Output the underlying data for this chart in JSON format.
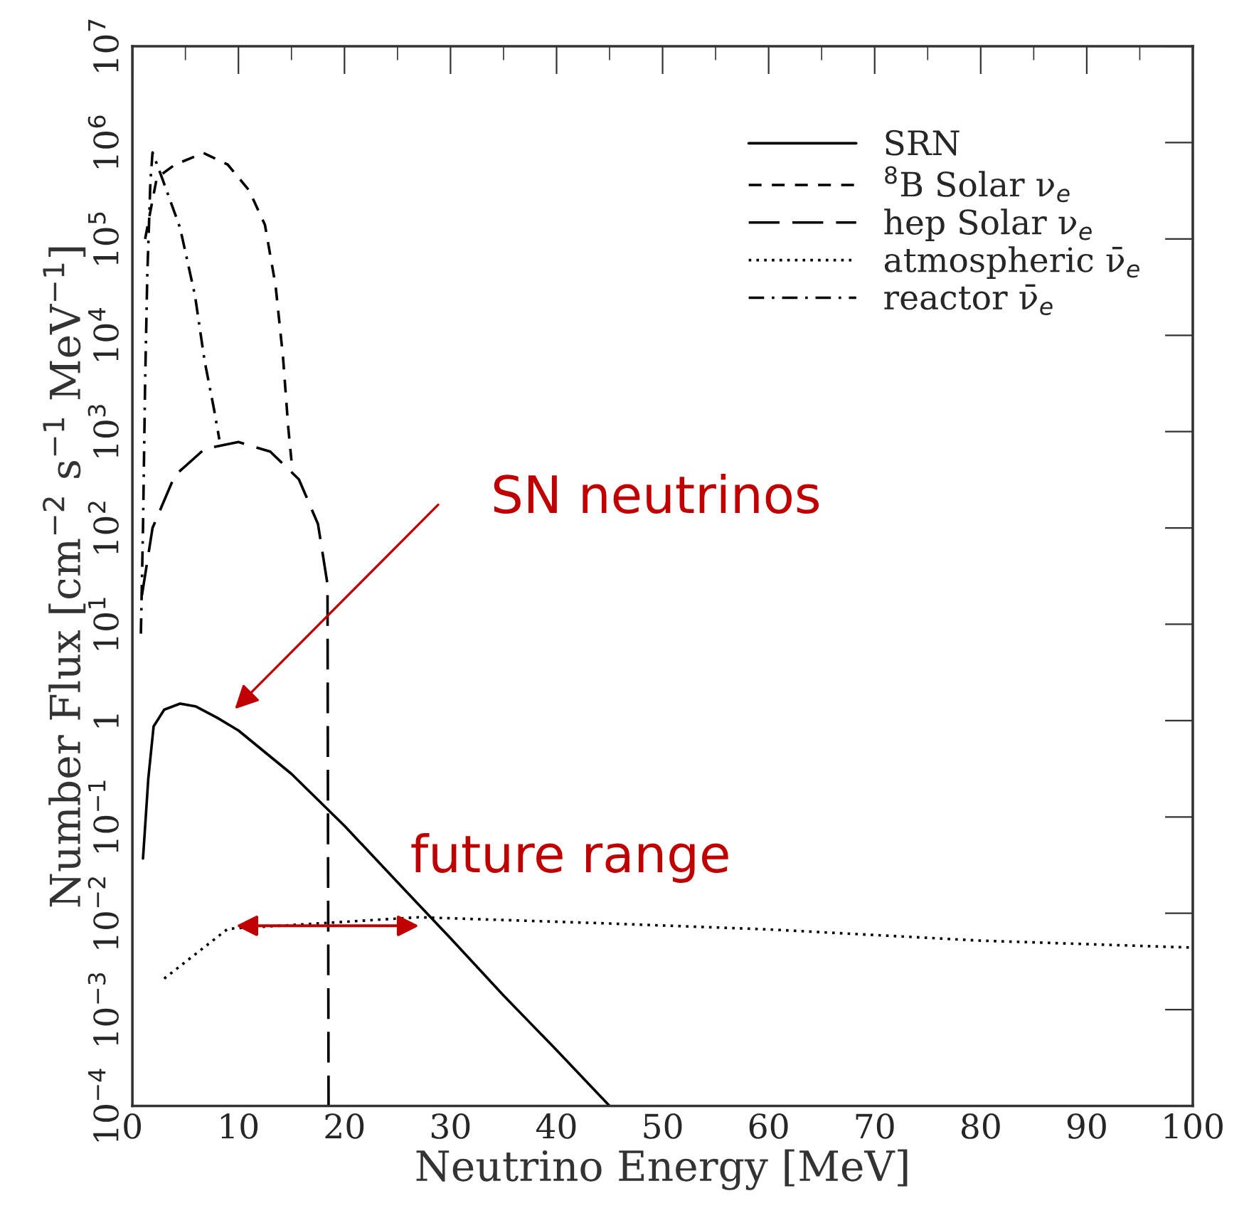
{
  "chart_data": {
    "type": "line",
    "xlabel": "Neutrino Energy [MeV]",
    "ylabel": "Number Flux [cm$^{−2}$ s$^{−1}$ MeV$^{−1}$]",
    "log": "y",
    "xlim": [
      0,
      100
    ],
    "xticks": [
      0,
      10,
      20,
      30,
      40,
      50,
      60,
      70,
      80,
      90,
      100
    ],
    "ylim": [
      0.0001,
      10000000
    ],
    "yticks": [
      {
        "value": 0.0001,
        "label": "10$^{−4}$"
      },
      {
        "value": 0.001,
        "label": "10$^{−3}$"
      },
      {
        "value": 0.01,
        "label": "10$^{−2}$"
      },
      {
        "value": 0.1,
        "label": "10$^{−1}$"
      },
      {
        "value": 1,
        "label": "1"
      },
      {
        "value": 10,
        "label": "10$^{1}$"
      },
      {
        "value": 100,
        "label": "10$^{2}$"
      },
      {
        "value": 1000,
        "label": "10$^{3}$"
      },
      {
        "value": 10000,
        "label": "10$^{4}$"
      },
      {
        "value": 100000,
        "label": "10$^{5}$"
      },
      {
        "value": 1000000,
        "label": "10$^{6}$"
      },
      {
        "value": 10000000,
        "label": "10$^{7}$"
      }
    ],
    "grid": false,
    "legend": "top right",
    "marker": "none",
    "series": [
      {
        "name": "SRN",
        "color": "#000000",
        "line_style": "solid",
        "x": [
          1,
          1.5,
          2,
          3,
          4.5,
          6,
          8,
          10,
          15,
          20,
          25,
          30,
          35,
          40,
          45
        ],
        "values": [
          0.037,
          0.25,
          0.87,
          1.3,
          1.5,
          1.4,
          1.07,
          0.79,
          0.28,
          0.081,
          0.021,
          0.0055,
          0.0014,
          0.00038,
          0.0001
        ]
      },
      {
        "name": "$^{8}$B Solar ν$_{e}$",
        "color": "#000000",
        "line_style": "dashed",
        "x": [
          1.2,
          2.3,
          4,
          6.7,
          9,
          11,
          12.5,
          13.5,
          14.2,
          14.7,
          15
        ],
        "values": [
          100000,
          430000,
          590000,
          780000,
          590000,
          320000,
          140000,
          33000,
          6000,
          1100,
          500
        ]
      },
      {
        "name": "hep Solar ν$_{e}$",
        "color": "#000000",
        "line_style": "longdashed",
        "x": [
          0.9,
          1.9,
          4,
          6.8,
          10,
          13,
          15.7,
          17.5,
          18.4,
          18.5
        ],
        "values": [
          20,
          100,
          350,
          660,
          780,
          620,
          320,
          110,
          26,
          0.0001
        ]
      },
      {
        "name": "atmospheric ν̄$_{e}$",
        "color": "#000000",
        "line_style": "dotted",
        "x": [
          3,
          9,
          18,
          27,
          44,
          60,
          80,
          100
        ],
        "values": [
          0.0021,
          0.0069,
          0.0079,
          0.0091,
          0.0079,
          0.0068,
          0.0052,
          0.0044
        ]
      },
      {
        "name": "reactor ν̄$_{e}$",
        "color": "#000000",
        "line_style": "dashdot",
        "x": [
          0.8,
          1.0,
          1.2,
          1.4,
          1.7,
          1.9,
          2.9,
          4.5,
          5.9,
          6.8,
          7.7,
          8.2
        ],
        "values": [
          8,
          100,
          3200,
          40000,
          400000,
          790000,
          400000,
          130000,
          26000,
          5500,
          1700,
          830
        ]
      }
    ],
    "annotations": [
      "SN neutrinos",
      "future range"
    ]
  }
}
